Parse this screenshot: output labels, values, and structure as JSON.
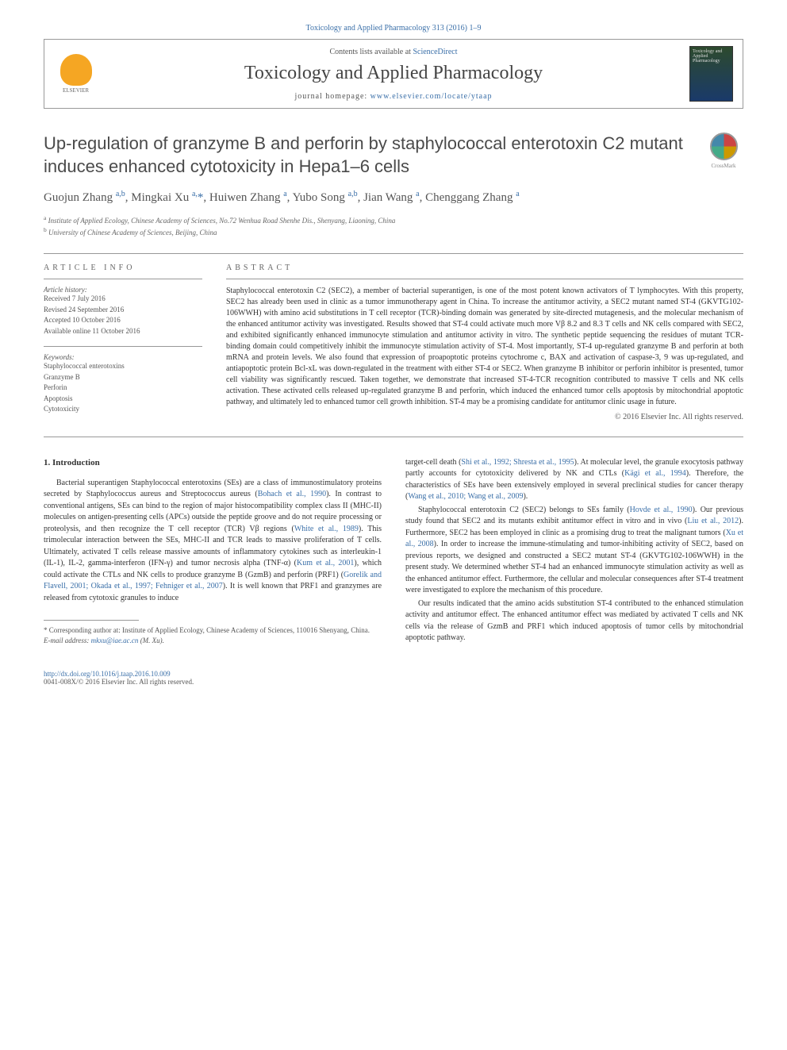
{
  "journal_ref": "Toxicology and Applied Pharmacology 313 (2016) 1–9",
  "header": {
    "contents_prefix": "Contents lists available at ",
    "contents_link": "ScienceDirect",
    "journal_name": "Toxicology and Applied Pharmacology",
    "homepage_prefix": "journal homepage: ",
    "homepage_link": "www.elsevier.com/locate/ytaap",
    "publisher": "ELSEVIER",
    "cover_text": "Toxicology and Applied Pharmacology"
  },
  "crossmark": "CrossMark",
  "title": "Up-regulation of granzyme B and perforin by staphylococcal enterotoxin C2 mutant induces enhanced cytotoxicity in Hepa1–6 cells",
  "authors_html": "Guojun Zhang <sup>a,b</sup>, Mingkai Xu <sup>a,</sup><span class='star'>*</span>, Huiwen Zhang <sup>a</sup>, Yubo Song <sup>a,b</sup>, Jian Wang <sup>a</sup>, Chenggang Zhang <sup>a</sup>",
  "affiliations": {
    "a": "Institute of Applied Ecology, Chinese Academy of Sciences, No.72 Wenhua Road Shenhe Dis., Shenyang, Liaoning, China",
    "b": "University of Chinese Academy of Sciences, Beijing, China"
  },
  "article_info": {
    "heading": "article info",
    "history_label": "Article history:",
    "history": "Received 7 July 2016\nRevised 24 September 2016\nAccepted 10 October 2016\nAvailable online 11 October 2016",
    "keywords_label": "Keywords:",
    "keywords": "Staphylococcal enterotoxins\nGranzyme B\nPerforin\nApoptosis\nCytotoxicity"
  },
  "abstract": {
    "heading": "abstract",
    "text": "Staphylococcal enterotoxin C2 (SEC2), a member of bacterial superantigen, is one of the most potent known activators of T lymphocytes. With this property, SEC2 has already been used in clinic as a tumor immunotherapy agent in China. To increase the antitumor activity, a SEC2 mutant named ST-4 (GKVTG102-106WWH) with amino acid substitutions in T cell receptor (TCR)-binding domain was generated by site-directed mutagenesis, and the molecular mechanism of the enhanced antitumor activity was investigated. Results showed that ST-4 could activate much more Vβ 8.2 and 8.3 T cells and NK cells compared with SEC2, and exhibited significantly enhanced immunocyte stimulation and antitumor activity in vitro. The synthetic peptide sequencing the residues of mutant TCR-binding domain could competitively inhibit the immunocyte stimulation activity of ST-4. Most importantly, ST-4 up-regulated granzyme B and perforin at both mRNA and protein levels. We also found that expression of proapoptotic proteins cytochrome c, BAX and activation of caspase-3, 9 was up-regulated, and antiapoptotic protein Bcl-xL was down-regulated in the treatment with either ST-4 or SEC2. When granzyme B inhibitor or perforin inhibitor is presented, tumor cell viability was significantly rescued. Taken together, we demonstrate that increased ST-4-TCR recognition contributed to massive T cells and NK cells activation. These activated cells released up-regulated granzyme B and perforin, which induced the enhanced tumor cells apoptosis by mitochondrial apoptotic pathway, and ultimately led to enhanced tumor cell growth inhibition. ST-4 may be a promising candidate for antitumor clinic usage in future.",
    "copyright": "© 2016 Elsevier Inc. All rights reserved."
  },
  "body": {
    "section_heading": "1. Introduction",
    "col1_p1_a": "Bacterial superantigen Staphylococcal enterotoxins (SEs) are a class of immunostimulatory proteins secreted by Staphylococcus aureus and Streptococcus aureus (",
    "col1_p1_cite1": "Bohach et al., 1990",
    "col1_p1_b": "). In contrast to conventional antigens, SEs can bind to the region of major histocompatibility complex class II (MHC-II) molecules on antigen-presenting cells (APCs) outside the peptide groove and do not require processing or proteolysis, and then recognize the T cell receptor (TCR) Vβ regions (",
    "col1_p1_cite2": "White et al., 1989",
    "col1_p1_c": "). This trimolecular interaction between the SEs, MHC-II and TCR leads to massive proliferation of T cells. Ultimately, activated T cells release massive amounts of inflammatory cytokines such as interleukin-1 (IL-1), IL-2, gamma-interferon (IFN-γ) and tumor necrosis alpha (TNF-α) (",
    "col1_p1_cite3": "Kum et al., 2001",
    "col1_p1_d": "), which could activate the CTLs and NK cells to produce granzyme B (GzmB) and perforin (PRF1) (",
    "col1_p1_cite4": "Gorelik and Flavell, 2001; Okada et al., 1997; Fehniger et al., 2007",
    "col1_p1_e": "). It is well known that PRF1 and granzymes are released from cytotoxic granules to induce",
    "col2_p1_a": "target-cell death (",
    "col2_p1_cite1": "Shi et al., 1992; Shresta et al., 1995",
    "col2_p1_b": "). At molecular level, the granule exocytosis pathway partly accounts for cytotoxicity delivered by NK and CTLs (",
    "col2_p1_cite2": "Kägi et al., 1994",
    "col2_p1_c": "). Therefore, the characteristics of SEs have been extensively employed in several preclinical studies for cancer therapy (",
    "col2_p1_cite3": "Wang et al., 2010; Wang et al., 2009",
    "col2_p1_d": ").",
    "col2_p2_a": "Staphylococcal enterotoxin C2 (SEC2) belongs to SEs family (",
    "col2_p2_cite1": "Hovde et al., 1990",
    "col2_p2_b": "). Our previous study found that SEC2 and its mutants exhibit antitumor effect in vitro and in vivo (",
    "col2_p2_cite2": "Liu et al., 2012",
    "col2_p2_c": "). Furthermore, SEC2 has been employed in clinic as a promising drug to treat the malignant tumors (",
    "col2_p2_cite3": "Xu et al., 2008",
    "col2_p2_d": "). In order to increase the immune-stimulating and tumor-inhibiting activity of SEC2, based on previous reports, we designed and constructed a SEC2 mutant ST-4 (GKVTG102-106WWH) in the present study. We determined whether ST-4 had an enhanced immunocyte stimulation activity as well as the enhanced antitumor effect. Furthermore, the cellular and molecular consequences after ST-4 treatment were investigated to explore the mechanism of this procedure.",
    "col2_p3": "Our results indicated that the amino acids substitution ST-4 contributed to the enhanced stimulation activity and antitumor effect. The enhanced antitumor effect was mediated by activated T cells and NK cells via the release of GzmB and PRF1 which induced apoptosis of tumor cells by mitochondrial apoptotic pathway."
  },
  "footnote": {
    "corresponding": "* Corresponding author at: Institute of Applied Ecology, Chinese Academy of Sciences, 110016 Shenyang, China.",
    "email_label": "E-mail address: ",
    "email": "mkxu@iae.ac.cn",
    "email_suffix": " (M. Xu)."
  },
  "footer": {
    "doi": "http://dx.doi.org/10.1016/j.taap.2016.10.009",
    "issn": "0041-008X/© 2016 Elsevier Inc. All rights reserved."
  },
  "colors": {
    "link": "#3a6fa8",
    "text": "#333333",
    "heading": "#4a4a4a",
    "rule": "#999999"
  }
}
